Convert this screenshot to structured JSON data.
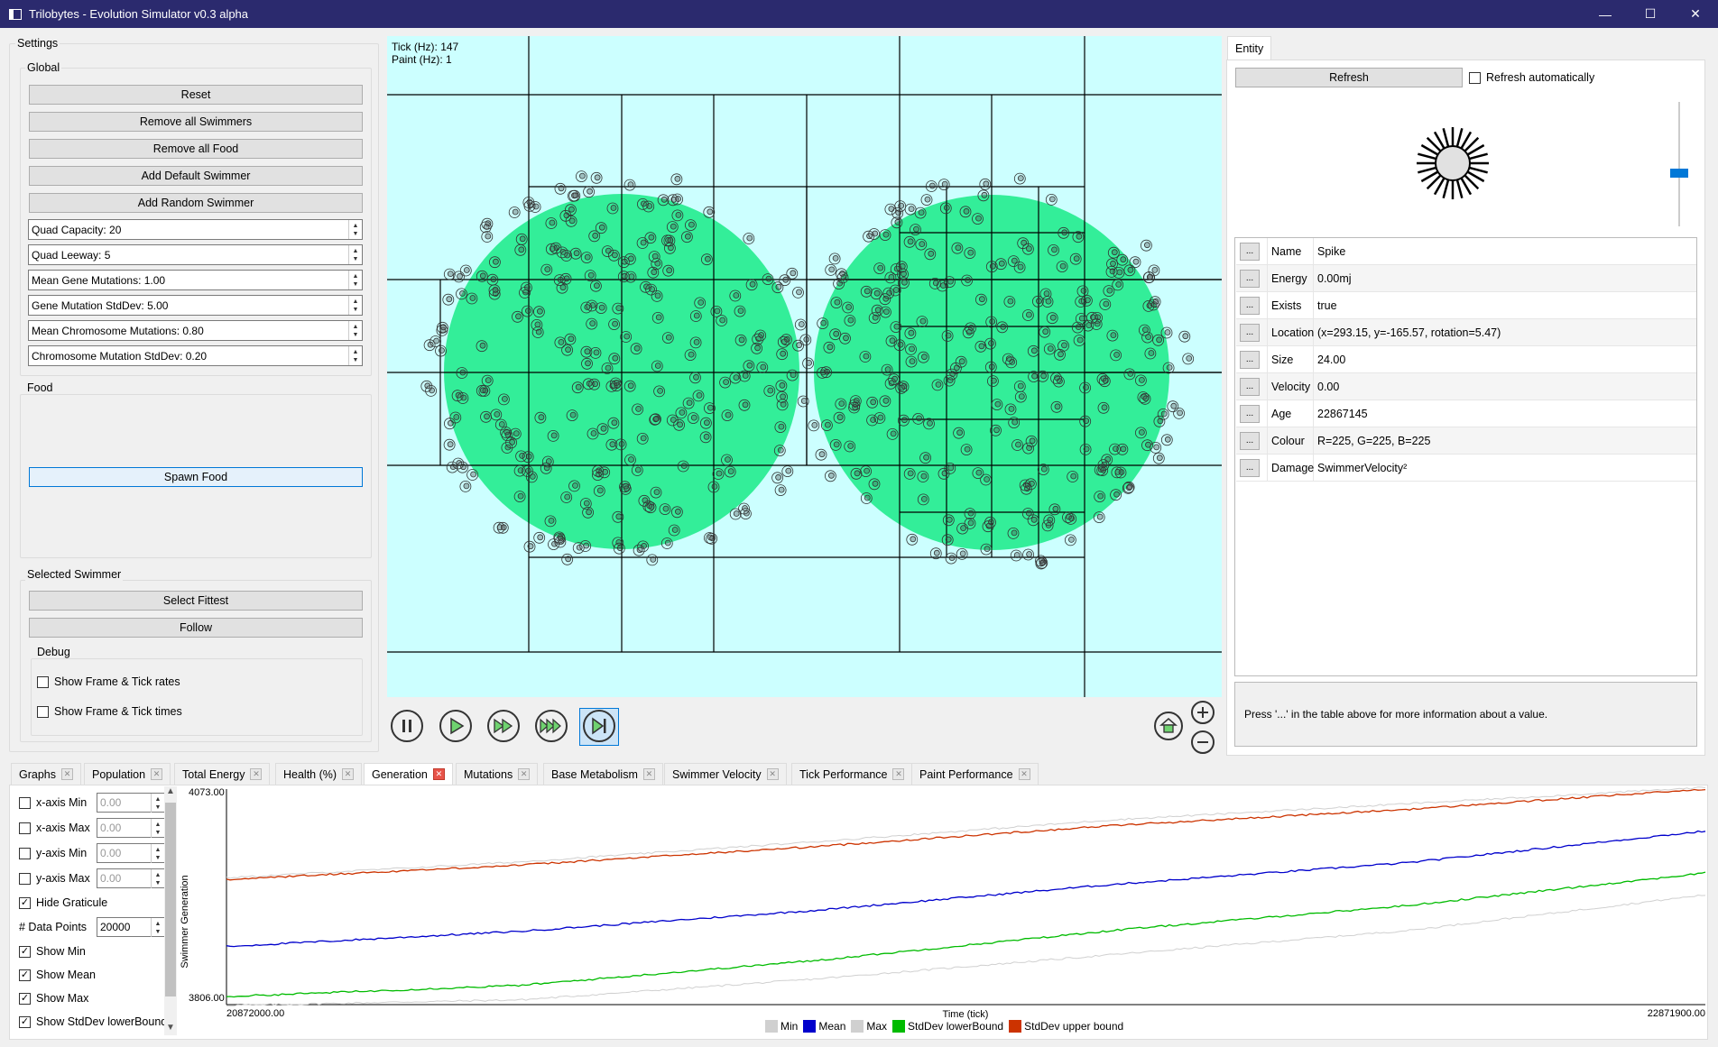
{
  "window": {
    "title": "Trilobytes - Evolution Simulator v0.3 alpha",
    "minimize": "—",
    "maximize": "☐",
    "close": "✕"
  },
  "settings": {
    "title": "Settings",
    "global": {
      "title": "Global",
      "buttons": [
        "Reset",
        "Remove all Swimmers",
        "Remove all Food",
        "Add Default Swimmer",
        "Add Random Swimmer"
      ],
      "spins": [
        "Quad Capacity: 20",
        "Quad Leeway: 5",
        "Mean Gene Mutations: 1.00",
        "Gene Mutation StdDev: 5.00",
        "Mean Chromosome Mutations: 0.80",
        "Chromosome Mutation StdDev: 0.20"
      ]
    },
    "food": {
      "title": "Food",
      "spawn": "Spawn Food"
    },
    "selected": {
      "title": "Selected Swimmer",
      "select_fittest": "Select Fittest",
      "follow": "Follow"
    },
    "debug": {
      "title": "Debug",
      "frame_tick_rates": "Show Frame & Tick rates",
      "frame_tick_times": "Show Frame & Tick times"
    }
  },
  "sim": {
    "tick": "Tick (Hz): 147",
    "paint": "Paint (Hz): 1"
  },
  "entity": {
    "tab": "Entity",
    "refresh": "Refresh",
    "refresh_auto": "Refresh automatically",
    "dots": "...",
    "props": [
      {
        "k": "Name",
        "v": "Spike"
      },
      {
        "k": "Energy",
        "v": "0.00mj"
      },
      {
        "k": "Exists",
        "v": "true"
      },
      {
        "k": "Location",
        "v": "(x=293.15, y=-165.57, rotation=5.47)"
      },
      {
        "k": "Size",
        "v": "24.00"
      },
      {
        "k": "Velocity",
        "v": "0.00"
      },
      {
        "k": "Age",
        "v": "22867145"
      },
      {
        "k": "Colour",
        "v": "R=225, G=225, B=225"
      },
      {
        "k": "Damage",
        "v": "SwimmerVelocity²"
      }
    ],
    "hint": "Press '...' in the table above for more information about a value."
  },
  "tabs": [
    "Graphs",
    "Population",
    "Total Energy",
    "Health (%)",
    "Generation",
    "Mutations",
    "Base Metabolism",
    "Swimmer Velocity",
    "Tick Performance",
    "Paint Performance"
  ],
  "graph_options": {
    "xmin": "x-axis Min",
    "xmax": "x-axis Max",
    "ymin": "y-axis Min",
    "ymax": "y-axis Max",
    "zero": "0.00",
    "hide_graticule": "Hide Graticule",
    "data_points_label": "# Data Points",
    "data_points": "20000",
    "show_min": "Show Min",
    "show_mean": "Show Mean",
    "show_max": "Show Max",
    "show_sdl": "Show StdDev lowerBound"
  },
  "colors": {
    "sim_bg": "#ccffff",
    "food": "#33ee99",
    "min": "#d0d0d0",
    "mean": "#0000cc",
    "max": "#d0d0d0",
    "sdl": "#00bb00",
    "sdu": "#cc3300"
  },
  "chart_data": {
    "type": "line",
    "ylabel": "Swimmer Generation",
    "xlabel": "Time (tick)",
    "ylim": [
      3806.0,
      4073.0
    ],
    "xlim": [
      20872000.0,
      22871900.0
    ],
    "y_ticks": [
      "4073.00",
      "3806.00"
    ],
    "x_ticks": [
      "20872000.00",
      "22871900.00"
    ],
    "x": [
      20872000,
      21272000,
      21672000,
      22072000,
      22472000,
      22871900
    ],
    "series": [
      {
        "name": "Min",
        "values": [
          3805,
          3812,
          3838,
          3868,
          3898,
          3942
        ]
      },
      {
        "name": "Mean",
        "values": [
          3878,
          3897,
          3923,
          3955,
          3982,
          4021
        ]
      },
      {
        "name": "Max",
        "values": [
          3963,
          3983,
          4008,
          4035,
          4055,
          4075
        ]
      },
      {
        "name": "StdDev lowerBound",
        "values": [
          3816,
          3830,
          3861,
          3898,
          3929,
          3969
        ]
      },
      {
        "name": "StdDev upper bound",
        "values": [
          3961,
          3979,
          4002,
          4028,
          4048,
          4073
        ]
      }
    ],
    "legend_position": "bottom",
    "grid": false
  }
}
